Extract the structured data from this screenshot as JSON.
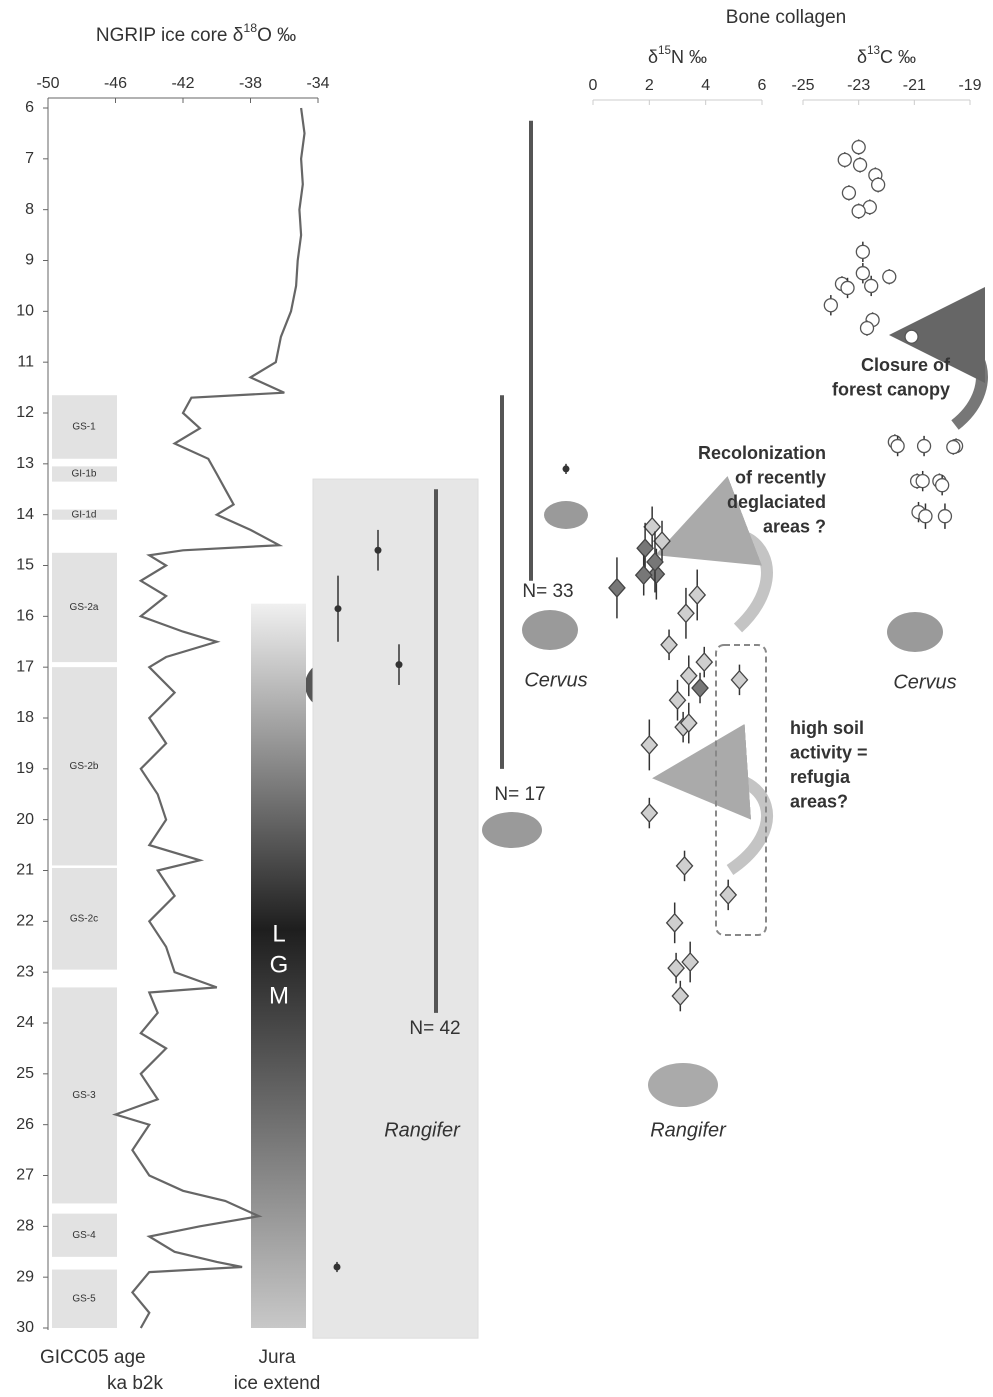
{
  "chart_data": [
    {
      "type": "line",
      "title_parts": [
        "NGRIP ice core δ",
        "18",
        "O ‰"
      ],
      "color": "#666666",
      "xlim": [
        -50,
        -34
      ],
      "xticks": [
        -50,
        -46,
        -42,
        -38,
        -34
      ],
      "ylim": [
        6,
        30
      ],
      "yticks": [
        6,
        7,
        8,
        9,
        10,
        11,
        12,
        13,
        14,
        15,
        16,
        17,
        18,
        19,
        20,
        21,
        22,
        23,
        24,
        25,
        26,
        27,
        28,
        29,
        30
      ],
      "y_label": [
        "GICC05 age",
        "ka b2k"
      ],
      "ages": [
        6,
        6.5,
        7,
        7.5,
        8,
        8.5,
        9,
        9.5,
        10,
        10.5,
        11,
        11.3,
        11.6,
        11.7,
        12,
        12.3,
        12.6,
        12.9,
        13.2,
        13.5,
        13.8,
        14.0,
        14.3,
        14.6,
        14.7,
        14.8,
        15,
        15.3,
        15.6,
        16,
        16.3,
        16.5,
        16.8,
        17,
        17.5,
        18,
        18.5,
        19,
        19.5,
        20,
        20.5,
        20.8,
        21,
        21.5,
        22,
        22.5,
        23,
        23.3,
        23.4,
        23.8,
        24.2,
        24.5,
        25,
        25.5,
        25.8,
        26,
        26.5,
        27,
        27.3,
        27.5,
        27.8,
        28,
        28.2,
        28.5,
        28.7,
        28.8,
        28.9,
        29.3,
        29.7,
        30
      ],
      "values": [
        -35,
        -34.8,
        -35,
        -34.9,
        -35.1,
        -35,
        -35.2,
        -35.3,
        -35.6,
        -36.2,
        -36.5,
        -38,
        -36,
        -41.5,
        -42,
        -41,
        -42.5,
        -40.5,
        -40,
        -39.5,
        -39,
        -40,
        -38,
        -36.3,
        -42,
        -44,
        -43,
        -44.5,
        -43,
        -44.5,
        -42,
        -40,
        -43,
        -44,
        -42.5,
        -44,
        -43,
        -44.5,
        -43.5,
        -43,
        -44,
        -41,
        -43.5,
        -42.5,
        -44,
        -43,
        -42.5,
        -40,
        -44,
        -43.5,
        -44.5,
        -43,
        -44.5,
        -43.5,
        -46,
        -44,
        -45,
        -44,
        -42,
        -39.5,
        -37.5,
        -41,
        -44,
        -42.5,
        -40,
        -38.5,
        -44,
        -45,
        -44,
        -44.5
      ],
      "stadials": [
        {
          "label": "GS-1",
          "range": [
            11.65,
            12.9
          ]
        },
        {
          "label": "GI-1b",
          "range": [
            13.05,
            13.35
          ]
        },
        {
          "label": "GI-1d",
          "range": [
            13.9,
            14.1
          ]
        },
        {
          "label": "GS-2a",
          "range": [
            14.75,
            16.9
          ]
        },
        {
          "label": "GS-2b",
          "range": [
            17.0,
            20.9
          ]
        },
        {
          "label": "GS-2c",
          "range": [
            20.95,
            22.95
          ]
        },
        {
          "label": "GS-3",
          "range": [
            23.3,
            27.55
          ]
        },
        {
          "label": "GS-4",
          "range": [
            27.75,
            28.6
          ]
        },
        {
          "label": "GS-5",
          "range": [
            28.85,
            30.0
          ]
        }
      ],
      "lgm": {
        "label": [
          "L",
          "G",
          "M"
        ],
        "range": [
          15.75,
          30
        ]
      },
      "ice_extent": {
        "label": [
          "Jura",
          "ice extend"
        ],
        "range": [
          13.3,
          30.2
        ]
      }
    },
    {
      "type": "range",
      "color": "#555555",
      "series": [
        {
          "name": "Cervus",
          "n_label": "N= 33",
          "range": [
            6.25,
            15.3
          ]
        },
        {
          "n_label": "N= 17",
          "range": [
            11.65,
            19.0
          ]
        },
        {
          "name": "Rangifer",
          "n_label": "N= 42",
          "range": [
            13.5,
            23.8
          ]
        }
      ],
      "dates": [
        {
          "age": 13.1,
          "error": 0.1
        },
        {
          "age": 14.7,
          "error": 0.4
        },
        {
          "age": 15.85,
          "error": 0.65
        },
        {
          "age": 16.95,
          "error": 0.4
        },
        {
          "age": 28.8,
          "error": 0.1
        }
      ]
    },
    {
      "type": "scatter",
      "super_title": "Bone collagen",
      "title_parts": [
        "δ",
        "15",
        "N ‰"
      ],
      "xlim": [
        0,
        6
      ],
      "xticks": [
        0,
        2,
        4,
        6
      ],
      "series": [
        {
          "name": "Rangifer",
          "color": "#cfcfcf",
          "values": [
            2.1,
            2.45,
            3.7,
            3.3,
            2.7,
            3.95,
            3.4,
            5.2,
            3.0,
            3.2,
            3.4,
            2.0,
            2.0,
            3.25,
            4.8,
            2.9,
            3.45,
            2.95,
            3.1
          ],
          "ages": [
            14.24,
            14.52,
            15.58,
            15.94,
            16.56,
            16.9,
            17.17,
            17.25,
            17.65,
            18.18,
            18.1,
            18.53,
            19.87,
            20.91,
            21.48,
            22.03,
            22.8,
            22.92,
            23.47
          ],
          "errors": [
            0.4,
            0.4,
            0.5,
            0.5,
            0.3,
            0.3,
            0.4,
            0.3,
            0.4,
            0.3,
            0.4,
            0.5,
            0.3,
            0.3,
            0.3,
            0.4,
            0.4,
            0.3,
            0.3
          ]
        },
        {
          "color": "#777777",
          "values": [
            0.85,
            1.85,
            2.25,
            2.2,
            3.8,
            1.8
          ],
          "ages": [
            15.44,
            14.66,
            15.17,
            14.93,
            17.41,
            15.19
          ],
          "errors": [
            0.6,
            0.5,
            0.5,
            0.6,
            0.3,
            0.4
          ]
        }
      ],
      "annotations": [
        [
          "Recolonization",
          "of recently",
          "deglaciated",
          "areas ?"
        ],
        [
          "high soil",
          "activity =",
          "refugia",
          "areas?"
        ]
      ]
    },
    {
      "type": "scatter",
      "title_parts": [
        "δ",
        "13",
        "C ‰"
      ],
      "xlim": [
        -25,
        -19
      ],
      "xticks": [
        -25,
        -23,
        -21,
        -19
      ],
      "series": [
        {
          "name": "Cervus",
          "color": "#ffffff",
          "values": [
            -23.0,
            -23.5,
            -22.95,
            -22.4,
            -22.3,
            -23.35,
            -22.6,
            -23.0,
            -22.85,
            -22.85,
            -21.9,
            -23.6,
            -23.4,
            -22.55,
            -24.0,
            -22.5,
            -22.7,
            -21.1,
            -21.7,
            -21.6,
            -20.65,
            -19.5,
            -19.6,
            -20.9,
            -20.7,
            -20.1,
            -20.0,
            -20.85,
            -20.6,
            -19.9
          ],
          "ages": [
            6.77,
            7.02,
            7.12,
            7.32,
            7.51,
            7.67,
            7.95,
            8.03,
            8.83,
            9.25,
            9.32,
            9.46,
            9.54,
            9.5,
            9.88,
            10.17,
            10.33,
            10.5,
            12.57,
            12.65,
            12.65,
            12.65,
            12.67,
            13.34,
            13.34,
            13.34,
            13.42,
            13.95,
            14.03,
            14.03
          ],
          "errors": [
            0.15,
            0.15,
            0.15,
            0.15,
            0.15,
            0.15,
            0.15,
            0.15,
            0.2,
            0.2,
            0.15,
            0.15,
            0.2,
            0.2,
            0.2,
            0.15,
            0.15,
            0.1,
            0.15,
            0.2,
            0.2,
            0.15,
            0.15,
            0.15,
            0.2,
            0.15,
            0.2,
            0.2,
            0.25,
            0.25
          ]
        }
      ],
      "annotations": [
        [
          "Closure of",
          "forest canopy"
        ]
      ]
    }
  ]
}
